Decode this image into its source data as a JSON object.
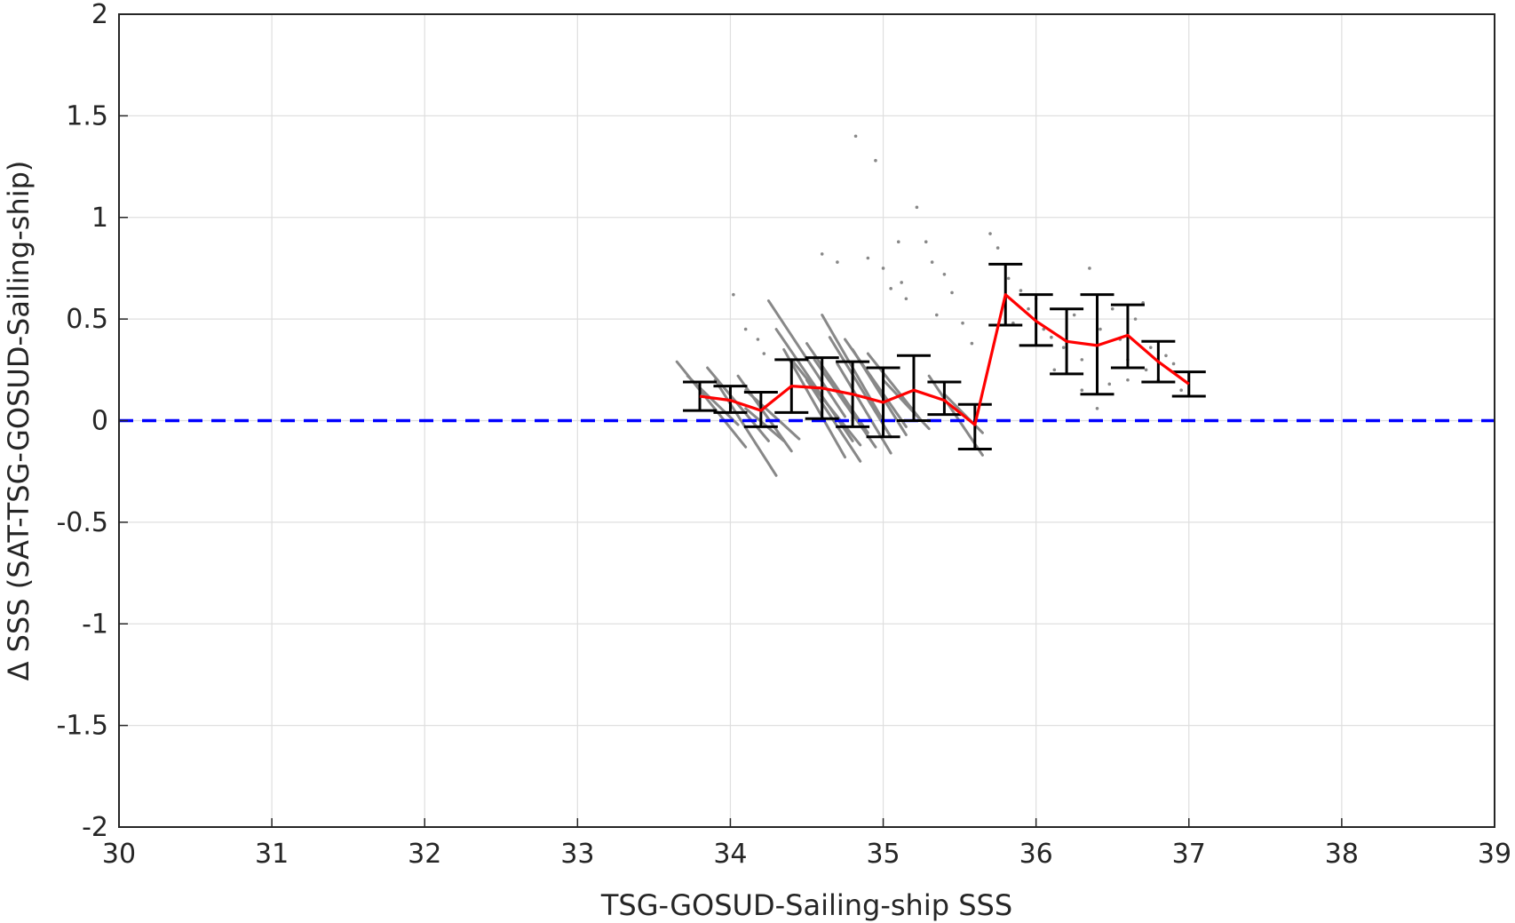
{
  "chart_data": {
    "type": "scatter",
    "xlabel": "TSG-GOSUD-Sailing-ship SSS",
    "ylabel": "Δ SSS (SAT-TSG-GOSUD-Sailing-ship)",
    "xlim": [
      30,
      39
    ],
    "ylim": [
      -2,
      2
    ],
    "xticks": [
      30,
      31,
      32,
      33,
      34,
      35,
      36,
      37,
      38,
      39
    ],
    "yticks": [
      -2,
      -1.5,
      -1,
      -0.5,
      0,
      0.5,
      1,
      1.5,
      2
    ],
    "ytick_labels": [
      "-2",
      "-1.5",
      "-1",
      "-0.5",
      "0",
      "0.5",
      "1",
      "1.5",
      "2"
    ],
    "grid": true,
    "reference_line": {
      "y": 0,
      "style": "dashed",
      "color": "#0000ff"
    },
    "mean_line": {
      "color": "#ff0000",
      "x": [
        33.8,
        34.0,
        34.2,
        34.4,
        34.6,
        34.8,
        35.0,
        35.2,
        35.4,
        35.6,
        35.8,
        36.0,
        36.2,
        36.4,
        36.6,
        36.8,
        37.0
      ],
      "y": [
        0.12,
        0.1,
        0.05,
        0.17,
        0.16,
        0.13,
        0.09,
        0.15,
        0.1,
        -0.02,
        0.62,
        0.49,
        0.39,
        0.37,
        0.42,
        0.29,
        0.18
      ]
    },
    "error_bars": {
      "color": "#000000",
      "x": [
        33.8,
        34.0,
        34.2,
        34.4,
        34.6,
        34.8,
        35.0,
        35.2,
        35.4,
        35.6,
        35.8,
        36.0,
        36.2,
        36.4,
        36.6,
        36.8,
        37.0
      ],
      "lower": [
        0.05,
        0.04,
        -0.03,
        0.04,
        0.01,
        -0.03,
        -0.08,
        0.0,
        0.03,
        -0.14,
        0.47,
        0.37,
        0.23,
        0.13,
        0.26,
        0.19,
        0.12
      ],
      "upper": [
        0.19,
        0.17,
        0.14,
        0.3,
        0.31,
        0.29,
        0.26,
        0.32,
        0.19,
        0.08,
        0.77,
        0.62,
        0.55,
        0.62,
        0.57,
        0.39,
        0.24
      ]
    },
    "scatter_streaks": {
      "color": "#888888",
      "segments": [
        [
          33.65,
          0.29,
          34.1,
          -0.13
        ],
        [
          33.72,
          0.22,
          34.05,
          -0.02
        ],
        [
          33.85,
          0.26,
          34.25,
          -0.1
        ],
        [
          33.9,
          0.2,
          34.3,
          -0.27
        ],
        [
          34.05,
          0.22,
          34.4,
          -0.15
        ],
        [
          34.1,
          0.15,
          34.45,
          -0.09
        ],
        [
          34.25,
          0.59,
          34.75,
          0.02
        ],
        [
          34.3,
          0.45,
          34.8,
          -0.1
        ],
        [
          34.35,
          0.35,
          34.75,
          -0.18
        ],
        [
          34.4,
          0.3,
          34.85,
          -0.12
        ],
        [
          34.5,
          0.38,
          34.9,
          -0.06
        ],
        [
          34.55,
          0.3,
          34.95,
          -0.13
        ],
        [
          34.6,
          0.52,
          35.0,
          0.0
        ],
        [
          34.65,
          0.41,
          35.05,
          -0.08
        ],
        [
          34.75,
          0.4,
          35.15,
          -0.03
        ],
        [
          34.8,
          0.35,
          35.15,
          -0.07
        ],
        [
          34.9,
          0.33,
          35.25,
          0.0
        ],
        [
          35.0,
          0.2,
          35.3,
          -0.04
        ],
        [
          35.3,
          0.22,
          35.65,
          -0.17
        ],
        [
          35.4,
          0.13,
          35.65,
          -0.06
        ],
        [
          34.1,
          0.06,
          34.35,
          -0.1
        ],
        [
          34.5,
          0.2,
          34.85,
          -0.2
        ],
        [
          34.7,
          0.28,
          35.05,
          -0.16
        ]
      ],
      "points": [
        [
          34.02,
          0.62
        ],
        [
          34.1,
          0.45
        ],
        [
          34.18,
          0.4
        ],
        [
          34.22,
          0.33
        ],
        [
          34.6,
          0.82
        ],
        [
          34.7,
          0.78
        ],
        [
          34.82,
          1.4
        ],
        [
          34.9,
          0.8
        ],
        [
          34.95,
          1.28
        ],
        [
          35.0,
          0.75
        ],
        [
          35.05,
          0.65
        ],
        [
          35.1,
          0.88
        ],
        [
          35.12,
          0.68
        ],
        [
          35.15,
          0.6
        ],
        [
          35.22,
          1.05
        ],
        [
          35.28,
          0.88
        ],
        [
          35.32,
          0.78
        ],
        [
          35.35,
          0.52
        ],
        [
          35.4,
          0.72
        ],
        [
          35.45,
          0.63
        ],
        [
          35.52,
          0.48
        ],
        [
          35.58,
          0.38
        ],
        [
          35.7,
          0.92
        ],
        [
          35.75,
          0.85
        ],
        [
          35.82,
          0.7
        ],
        [
          35.9,
          0.64
        ],
        [
          35.95,
          0.55
        ],
        [
          36.05,
          0.45
        ],
        [
          36.1,
          0.41
        ],
        [
          36.18,
          0.36
        ],
        [
          36.25,
          0.52
        ],
        [
          36.3,
          0.3
        ],
        [
          36.35,
          0.75
        ],
        [
          36.4,
          0.06
        ],
        [
          36.42,
          0.45
        ],
        [
          36.5,
          0.55
        ],
        [
          36.55,
          0.4
        ],
        [
          36.6,
          0.3
        ],
        [
          36.65,
          0.5
        ],
        [
          36.7,
          0.58
        ],
        [
          36.72,
          0.25
        ],
        [
          36.75,
          0.36
        ],
        [
          36.8,
          0.2
        ],
        [
          36.85,
          0.32
        ],
        [
          36.9,
          0.28
        ],
        [
          36.95,
          0.15
        ],
        [
          36.48,
          0.18
        ],
        [
          36.12,
          0.25
        ],
        [
          36.6,
          0.2
        ],
        [
          36.3,
          0.15
        ],
        [
          35.85,
          0.48
        ],
        [
          36.0,
          0.6
        ]
      ]
    }
  }
}
